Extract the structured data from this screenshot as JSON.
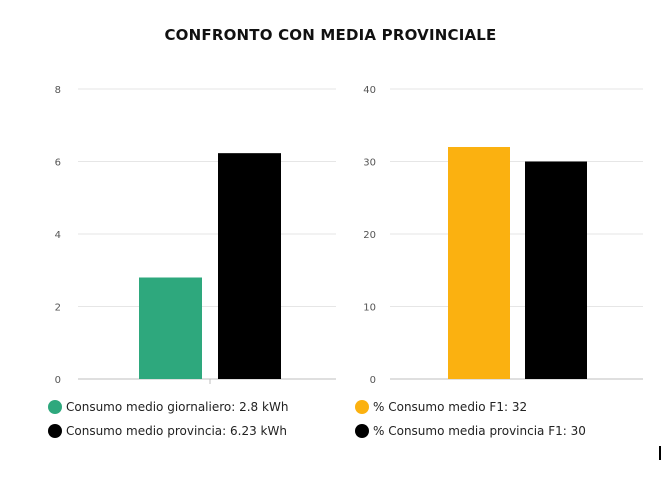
{
  "title": "CONFRONTO CON MEDIA PROVINCIALE",
  "chart_data": [
    {
      "type": "bar",
      "ylim": [
        0,
        8
      ],
      "yticks": [
        0,
        2,
        4,
        6,
        8
      ],
      "grid": "horizontal",
      "series": [
        {
          "name": "Consumo medio giornaliero: 2.8 kWh",
          "value": 2.8,
          "color": "#2ea87d"
        },
        {
          "name": "Consumo medio provincia: 6.23 kWh",
          "value": 6.23,
          "color": "#000000"
        }
      ]
    },
    {
      "type": "bar",
      "ylim": [
        0,
        40
      ],
      "yticks": [
        0,
        10,
        20,
        30,
        40
      ],
      "grid": "horizontal",
      "series": [
        {
          "name": "% Consumo medio F1: 32",
          "value": 32,
          "color": "#fbb110"
        },
        {
          "name": "% Consumo media provincia F1: 30",
          "value": 30,
          "color": "#000000"
        }
      ]
    }
  ],
  "legend": {
    "left": [
      {
        "label": "Consumo medio giornaliero: 2.8 kWh",
        "color": "#2ea87d"
      },
      {
        "label": "Consumo medio provincia: 6.23 kWh",
        "color": "#000000"
      }
    ],
    "right": [
      {
        "label": "% Consumo medio F1: 32",
        "color": "#fbb110"
      },
      {
        "label": "% Consumo media provincia F1: 30",
        "color": "#000000"
      }
    ]
  }
}
